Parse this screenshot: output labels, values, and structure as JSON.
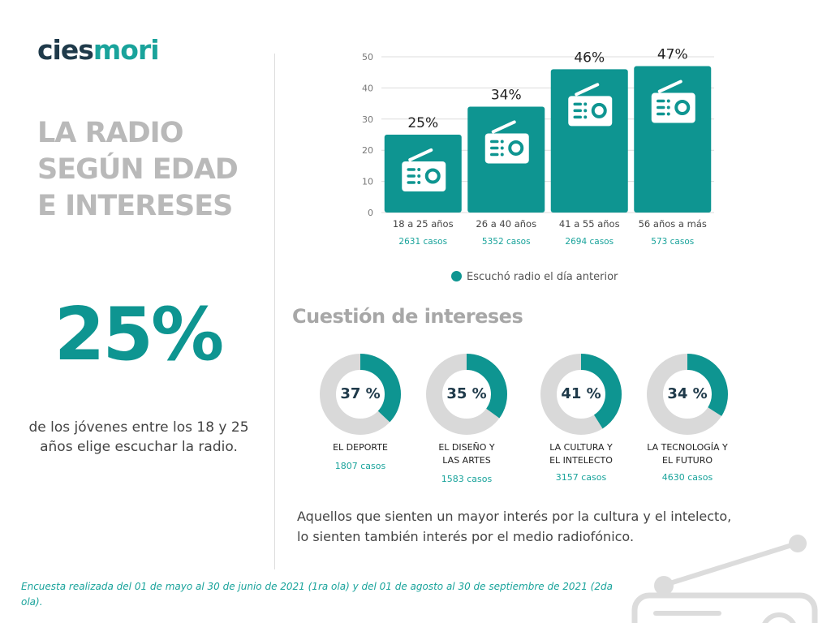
{
  "brand": {
    "part1": "cies",
    "part2": "mori"
  },
  "title_lines": [
    "LA RADIO",
    "SEGÚN EDAD",
    "E INTERESES"
  ],
  "highlight": {
    "value": "25%",
    "text": "de los jóvenes entre los 18 y 25 años elige escuchar la radio."
  },
  "chart_data": {
    "type": "bar",
    "title": "",
    "categories": [
      "18 a 25 años",
      "26 a 40 años",
      "41 a 55 años",
      "56 años a más"
    ],
    "case_labels": [
      "2631 casos",
      "5352 casos",
      "2694 casos",
      "573 casos"
    ],
    "series": [
      {
        "name": "Escuchó radio el día anterior",
        "values": [
          25,
          34,
          46,
          47
        ]
      }
    ],
    "value_labels": [
      "25%",
      "34%",
      "46%",
      "47%"
    ],
    "ylim": [
      0,
      50
    ],
    "yticks": [
      0,
      10,
      20,
      30,
      40,
      50
    ],
    "legend": "bottom",
    "colors": {
      "bar": "#0e9591",
      "icon": "#ffffff"
    }
  },
  "interests": {
    "heading": "Cuestión de intereses",
    "items": [
      {
        "pct": 37,
        "pct_label": "37 %",
        "label_lines": [
          "EL DEPORTE"
        ],
        "cases": "1807 casos"
      },
      {
        "pct": 35,
        "pct_label": "35 %",
        "label_lines": [
          "EL DISEÑO Y",
          "LAS ARTES"
        ],
        "cases": "1583 casos"
      },
      {
        "pct": 41,
        "pct_label": "41 %",
        "label_lines": [
          "LA CULTURA Y",
          "EL INTELECTO"
        ],
        "cases": "3157 casos"
      },
      {
        "pct": 34,
        "pct_label": "34 %",
        "label_lines": [
          "LA TECNOLOGÍA Y",
          "EL FUTURO"
        ],
        "cases": "4630 casos"
      }
    ],
    "colors": {
      "fill": "#0e9591",
      "track": "#d9d9d9"
    }
  },
  "note": "Aquellos que sienten un mayor interés por la cultura y el intelecto, lo sienten también interés por el medio radiofónico.",
  "footnote": "Encuesta realizada del 01 de mayo al 30 de junio de 2021 (1ra ola) y del 01 de agosto al 30 de septiembre de 2021 (2da ola)."
}
